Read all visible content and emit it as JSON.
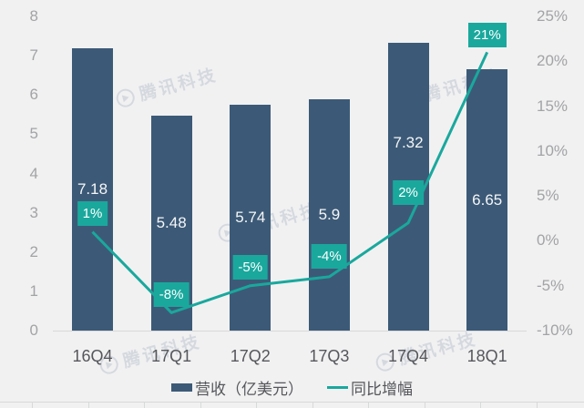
{
  "chart_data": {
    "type": "bar+line",
    "categories": [
      "16Q4",
      "17Q1",
      "17Q2",
      "17Q3",
      "17Q4",
      "18Q1"
    ],
    "series": [
      {
        "name": "营收（亿美元）",
        "type": "bar",
        "axis": "left",
        "values": [
          7.18,
          5.48,
          5.74,
          5.9,
          7.32,
          6.65
        ],
        "labels": [
          "7.18",
          "5.48",
          "5.74",
          "5.9",
          "7.32",
          "6.65"
        ]
      },
      {
        "name": "同比增幅",
        "type": "line",
        "axis": "right",
        "values": [
          1,
          -8,
          -5,
          -4,
          2,
          21
        ],
        "labels": [
          "1%",
          "-8%",
          "-5%",
          "-4%",
          "2%",
          "21%"
        ]
      }
    ],
    "left_axis": {
      "min": 0,
      "max": 8,
      "ticks": [
        "8",
        "7",
        "6",
        "5",
        "4",
        "3",
        "2",
        "1",
        "0"
      ]
    },
    "right_axis": {
      "min": -10,
      "max": 25,
      "ticks": [
        "25%",
        "20%",
        "15%",
        "10%",
        "5%",
        "0%",
        "-5%",
        "-10%"
      ]
    },
    "grid": "off",
    "legend": {
      "position": "bottom-center",
      "items": [
        {
          "label": "营收（亿美元）",
          "marker": "bar"
        },
        {
          "label": "同比增幅",
          "marker": "line"
        }
      ]
    }
  },
  "watermark": {
    "icon": "tencent-tech-logo",
    "text": "腾讯科技"
  },
  "colors": {
    "bar": "#3c5a77",
    "line": "#1aa89d",
    "badge_bg": "#1aa89d",
    "badge_text": "#ffffff",
    "bar_value_text": "#f5f6f7",
    "background": "#f1f1f2",
    "axis_tick_text": "#a2a3a5",
    "category_text": "#56575b",
    "legend_text": "#56575b",
    "axis_line": "#d8d9da"
  }
}
